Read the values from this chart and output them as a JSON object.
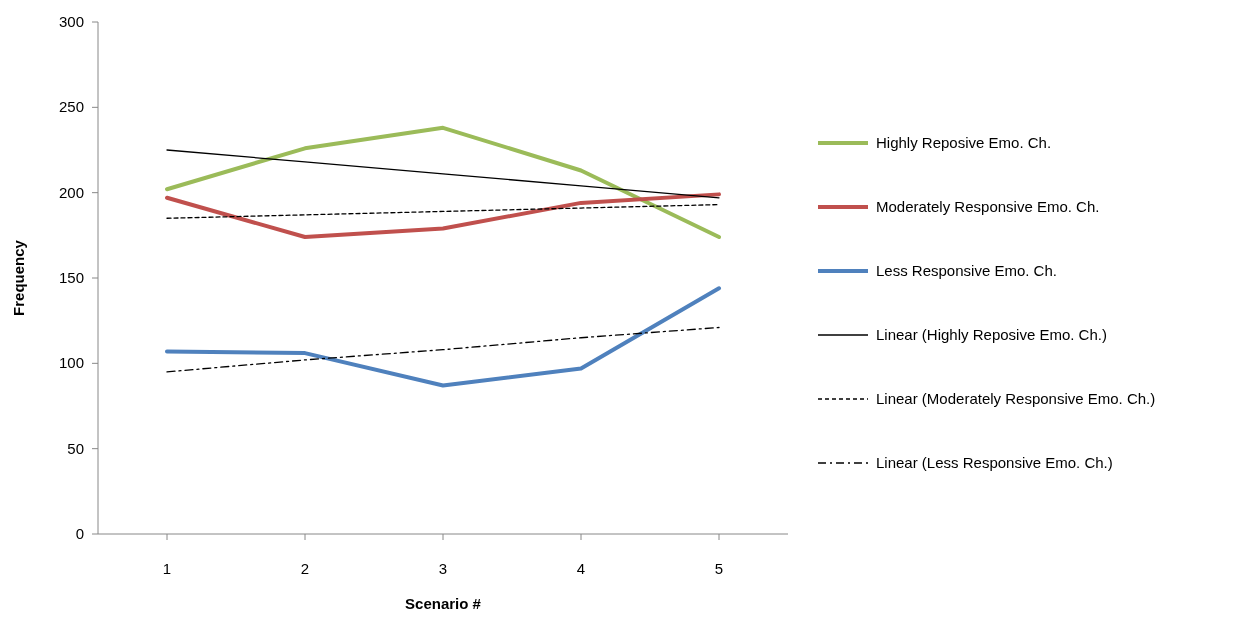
{
  "chart_data": {
    "type": "line",
    "xlabel": "Scenario #",
    "ylabel": "Frequency",
    "x": [
      1,
      2,
      3,
      4,
      5
    ],
    "xlim": [
      0.5,
      5.5
    ],
    "xticks": [
      1,
      2,
      3,
      4,
      5
    ],
    "ylim": [
      0,
      300
    ],
    "yticks": [
      0,
      50,
      100,
      150,
      200,
      250,
      300
    ],
    "grid": false,
    "legend": "right",
    "marker": "none",
    "series": [
      {
        "name": "Highly Reposive Emo. Ch.",
        "color": "#9bbb59",
        "values": [
          202,
          226,
          238,
          213,
          174
        ]
      },
      {
        "name": "Moderately Responsive Emo. Ch.",
        "color": "#c0504d",
        "values": [
          197,
          174,
          179,
          194,
          199
        ]
      },
      {
        "name": "Less Responsive Emo. Ch.",
        "color": "#4f81bd",
        "values": [
          107,
          106,
          87,
          97,
          144
        ]
      },
      {
        "name": "Linear (Highly Reposive Emo. Ch.)",
        "color": "#000000",
        "values": [
          225,
          218,
          211,
          204,
          197
        ],
        "line_style": "solid"
      },
      {
        "name": "Linear (Moderately Responsive Emo. Ch.)",
        "color": "#000000",
        "values": [
          185,
          187,
          189,
          191,
          193
        ],
        "line_style": "dashed"
      },
      {
        "name": "Linear (Less Responsive Emo. Ch.)",
        "color": "#000000",
        "values": [
          95,
          102,
          108,
          115,
          121
        ],
        "line_style": "dashdot"
      }
    ]
  }
}
